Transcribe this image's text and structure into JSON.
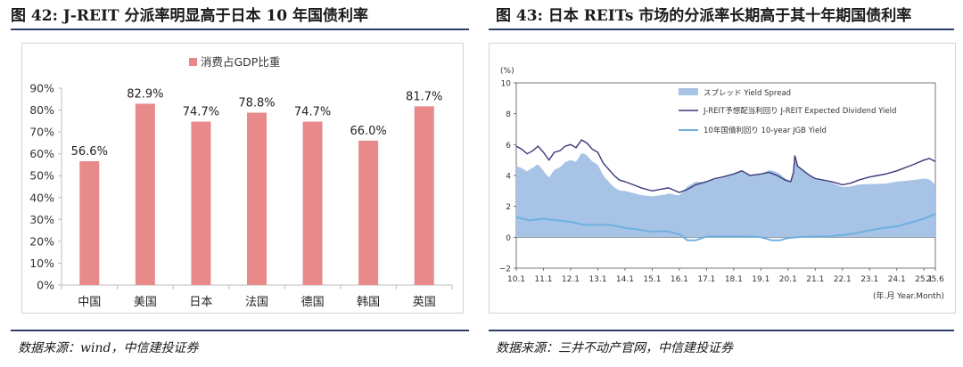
{
  "left": {
    "title": "图 42: J-REIT 分派率明显高于日本 10 年国债利率",
    "source": "数据来源：wind，中信建投证券"
  },
  "right": {
    "title": "图 43: 日本 REITs 市场的分派率长期高于其十年期国债利率",
    "source": "数据来源：三井不动产官网，中信建投证券"
  },
  "colors": {
    "bar": "#e8898a",
    "spread": "#a7c3e6",
    "dividend": "#3a3a7a",
    "jgb": "#6fb0e0",
    "rule": "#2c3e67"
  },
  "chart_data": [
    {
      "type": "bar",
      "legend": "消费占GDP比重",
      "categories": [
        "中国",
        "美国",
        "日本",
        "法国",
        "德国",
        "韩国",
        "英国"
      ],
      "values": [
        56.6,
        82.9,
        74.7,
        78.8,
        74.7,
        66.0,
        81.7
      ],
      "labels": [
        "56.6%",
        "82.9%",
        "74.7%",
        "78.8%",
        "74.7%",
        "66.0%",
        "81.7%"
      ],
      "ylim": [
        0,
        90
      ],
      "yticks": [
        "0%",
        "10%",
        "20%",
        "30%",
        "40%",
        "50%",
        "60%",
        "70%",
        "80%",
        "90%"
      ]
    },
    {
      "type": "line",
      "unit": "(%)",
      "xlabel": "(年.月 Year.Month)",
      "ylim": [
        -2,
        10
      ],
      "yticks": [
        "−2",
        "0",
        "2",
        "4",
        "6",
        "8",
        "10"
      ],
      "xticks": [
        "10.1",
        "11.1",
        "12.1",
        "13.1",
        "14.1",
        "15.1",
        "16.1",
        "17.1",
        "18.1",
        "19.1",
        "20.1",
        "21.1",
        "22.1",
        "23.1",
        "24.1",
        "25.1",
        "25.6"
      ],
      "xrange": [
        2010.0,
        2025.42
      ],
      "legend": [
        "スプレッド Yield Spread",
        "J-REIT予想配当利回り J-REIT Expected Dividend Yield",
        "10年国債利回り 10-year JGB Yield"
      ],
      "series": [
        {
          "name": "J-REIT予想配当利回り J-REIT Expected Dividend Yield",
          "x": [
            2010.0,
            2010.2,
            2010.4,
            2010.6,
            2010.8,
            2011.0,
            2011.2,
            2011.4,
            2011.6,
            2011.8,
            2012.0,
            2012.2,
            2012.4,
            2012.6,
            2012.8,
            2013.0,
            2013.2,
            2013.4,
            2013.6,
            2013.8,
            2014.0,
            2014.3,
            2014.6,
            2015.0,
            2015.3,
            2015.6,
            2016.0,
            2016.3,
            2016.6,
            2017.0,
            2017.3,
            2017.6,
            2018.0,
            2018.3,
            2018.6,
            2019.0,
            2019.3,
            2019.6,
            2019.9,
            2020.1,
            2020.2,
            2020.25,
            2020.35,
            2020.5,
            2020.8,
            2021.0,
            2021.3,
            2021.6,
            2022.0,
            2022.3,
            2022.6,
            2023.0,
            2023.3,
            2023.6,
            2024.0,
            2024.3,
            2024.6,
            2025.0,
            2025.2,
            2025.42
          ],
          "y": [
            5.9,
            5.7,
            5.4,
            5.6,
            5.9,
            5.5,
            5.0,
            5.5,
            5.6,
            5.9,
            6.0,
            5.8,
            6.3,
            6.1,
            5.7,
            5.5,
            4.8,
            4.4,
            4.0,
            3.7,
            3.6,
            3.4,
            3.2,
            3.0,
            3.1,
            3.2,
            2.9,
            3.1,
            3.4,
            3.6,
            3.8,
            3.9,
            4.1,
            4.3,
            4.0,
            4.1,
            4.2,
            4.0,
            3.7,
            3.6,
            4.2,
            5.3,
            4.6,
            4.4,
            4.0,
            3.8,
            3.7,
            3.6,
            3.4,
            3.5,
            3.7,
            3.9,
            4.0,
            4.1,
            4.3,
            4.5,
            4.7,
            5.0,
            5.1,
            4.9
          ]
        },
        {
          "name": "10年国債利回り 10-year JGB Yield",
          "x": [
            2010.0,
            2010.5,
            2011.0,
            2011.5,
            2012.0,
            2012.5,
            2013.0,
            2013.5,
            2014.0,
            2014.5,
            2015.0,
            2015.5,
            2016.0,
            2016.3,
            2016.6,
            2017.0,
            2017.5,
            2018.0,
            2018.5,
            2019.0,
            2019.4,
            2019.7,
            2020.0,
            2020.5,
            2021.0,
            2021.5,
            2022.0,
            2022.5,
            2023.0,
            2023.5,
            2024.0,
            2024.5,
            2025.0,
            2025.42
          ],
          "y": [
            1.3,
            1.1,
            1.2,
            1.1,
            1.0,
            0.8,
            0.8,
            0.8,
            0.6,
            0.5,
            0.35,
            0.4,
            0.2,
            -0.2,
            -0.2,
            0.05,
            0.05,
            0.05,
            0.05,
            0.0,
            -0.2,
            -0.2,
            -0.05,
            0.02,
            0.05,
            0.05,
            0.15,
            0.25,
            0.45,
            0.6,
            0.7,
            0.95,
            1.2,
            1.5
          ]
        }
      ]
    }
  ]
}
